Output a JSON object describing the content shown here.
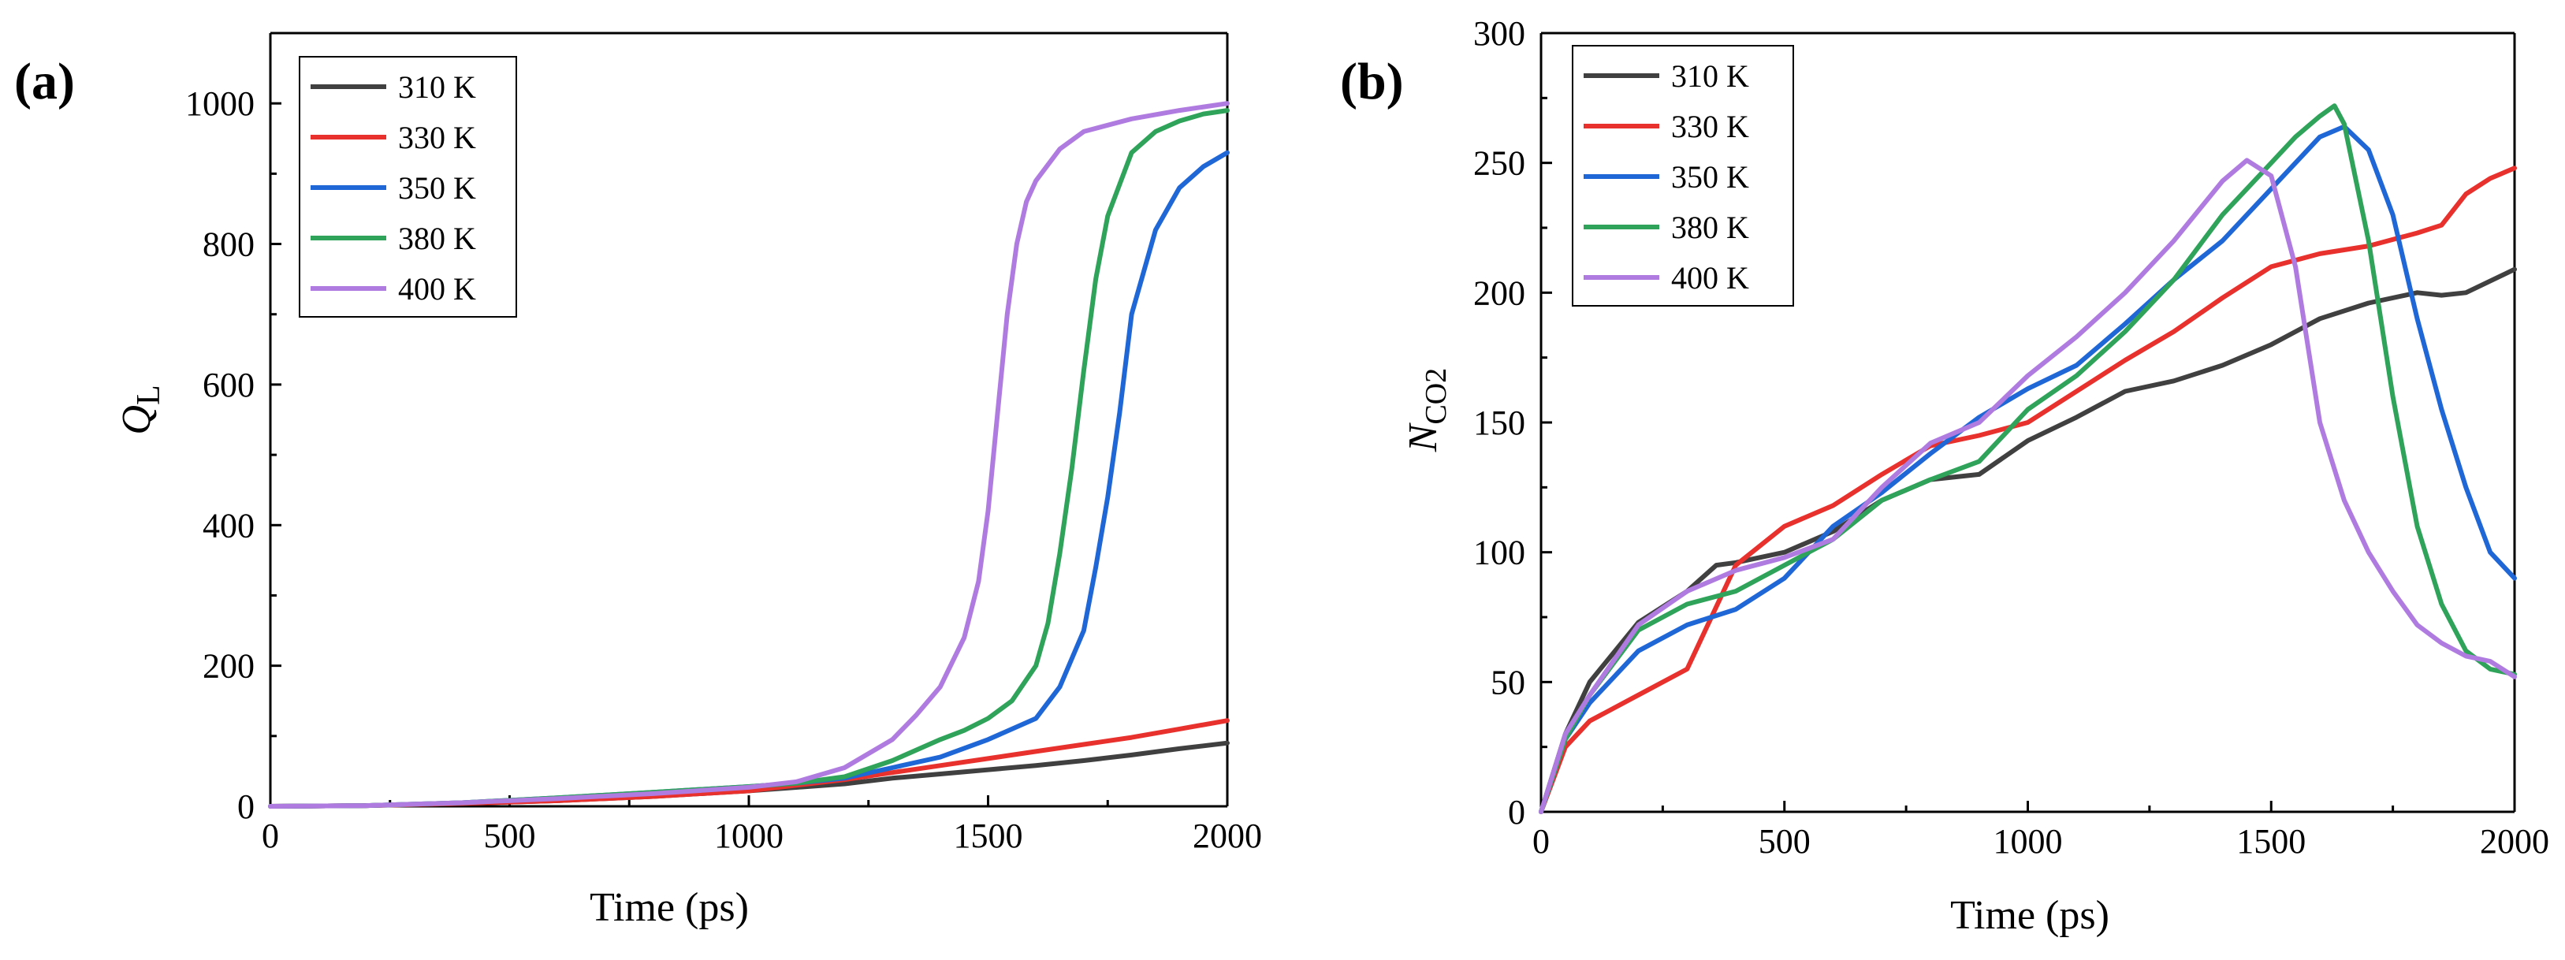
{
  "colors": {
    "310 K": "#404040",
    "330 K": "#e8302d",
    "350 K": "#1f66d6",
    "380 K": "#2fa35a",
    "400 K": "#b07be0"
  },
  "chart_data": [
    {
      "type": "line",
      "panel_label": "(a)",
      "xlabel": "Time (ps)",
      "ylabel_main": "Q",
      "ylabel_sub": "L",
      "xlim": [
        0,
        2000
      ],
      "ylim": [
        0,
        1100
      ],
      "xticks": [
        0,
        500,
        1000,
        1500,
        2000
      ],
      "yticks": [
        0,
        200,
        400,
        600,
        800,
        1000
      ],
      "xtick_labels": [
        "0",
        "500",
        "1000",
        "1500",
        "2000"
      ],
      "ytick_labels": [
        "0",
        "200",
        "400",
        "600",
        "800",
        "1000"
      ],
      "legend": [
        "310 K",
        "330 K",
        "350 K",
        "380 K",
        "400 K"
      ],
      "legend_position": "top-left",
      "series": [
        {
          "name": "310 K",
          "x": [
            0,
            200,
            400,
            600,
            800,
            1000,
            1200,
            1300,
            1400,
            1500,
            1600,
            1700,
            1800,
            1900,
            2000
          ],
          "y": [
            0,
            1,
            4,
            8,
            14,
            22,
            32,
            40,
            46,
            52,
            58,
            65,
            73,
            82,
            90
          ]
        },
        {
          "name": "330 K",
          "x": [
            0,
            200,
            400,
            600,
            800,
            1000,
            1200,
            1300,
            1400,
            1500,
            1600,
            1700,
            1800,
            1900,
            2000
          ],
          "y": [
            0,
            1,
            4,
            8,
            14,
            22,
            38,
            48,
            58,
            68,
            78,
            88,
            98,
            110,
            122
          ]
        },
        {
          "name": "350 K",
          "x": [
            0,
            200,
            400,
            600,
            800,
            1000,
            1100,
            1200,
            1300,
            1400,
            1500,
            1600,
            1650,
            1700,
            1725,
            1750,
            1775,
            1800,
            1850,
            1900,
            1950,
            2000
          ],
          "y": [
            0,
            1,
            5,
            12,
            20,
            28,
            33,
            40,
            55,
            70,
            95,
            125,
            170,
            250,
            340,
            440,
            560,
            700,
            820,
            880,
            910,
            930
          ]
        },
        {
          "name": "380 K",
          "x": [
            0,
            200,
            400,
            600,
            800,
            1000,
            1100,
            1200,
            1300,
            1400,
            1450,
            1500,
            1550,
            1600,
            1625,
            1650,
            1675,
            1700,
            1725,
            1750,
            1800,
            1850,
            1900,
            1950,
            2000
          ],
          "y": [
            0,
            1,
            5,
            12,
            20,
            28,
            33,
            42,
            65,
            95,
            108,
            125,
            150,
            200,
            260,
            360,
            480,
            620,
            750,
            840,
            930,
            960,
            975,
            985,
            990
          ]
        },
        {
          "name": "400 K",
          "x": [
            0,
            200,
            400,
            600,
            800,
            1000,
            1100,
            1200,
            1300,
            1350,
            1400,
            1450,
            1480,
            1500,
            1520,
            1540,
            1560,
            1580,
            1600,
            1650,
            1700,
            1800,
            1900,
            2000
          ],
          "y": [
            0,
            1,
            5,
            11,
            18,
            27,
            35,
            55,
            95,
            130,
            170,
            240,
            320,
            420,
            560,
            700,
            800,
            860,
            890,
            935,
            960,
            978,
            990,
            1000
          ]
        }
      ]
    },
    {
      "type": "line",
      "panel_label": "(b)",
      "xlabel": "Time (ps)",
      "ylabel_main": "N",
      "ylabel_sub": "CO2",
      "xlim": [
        0,
        2000
      ],
      "ylim": [
        0,
        300
      ],
      "xticks": [
        0,
        500,
        1000,
        1500,
        2000
      ],
      "yticks": [
        0,
        50,
        100,
        150,
        200,
        250,
        300
      ],
      "xtick_labels": [
        "0",
        "500",
        "1000",
        "1500",
        "2000"
      ],
      "ytick_labels": [
        "0",
        "50",
        "100",
        "150",
        "200",
        "250",
        "300"
      ],
      "legend": [
        "310 K",
        "330 K",
        "350 K",
        "380 K",
        "400 K"
      ],
      "legend_position": "top-left",
      "series": [
        {
          "name": "310 K",
          "x": [
            0,
            50,
            100,
            200,
            300,
            360,
            400,
            500,
            600,
            700,
            800,
            900,
            1000,
            1100,
            1200,
            1300,
            1400,
            1500,
            1600,
            1700,
            1800,
            1850,
            1900,
            2000
          ],
          "y": [
            0,
            30,
            50,
            73,
            85,
            95,
            96,
            100,
            108,
            120,
            128,
            130,
            143,
            152,
            162,
            166,
            172,
            180,
            190,
            196,
            200,
            199,
            200,
            209
          ]
        },
        {
          "name": "330 K",
          "x": [
            0,
            50,
            100,
            200,
            300,
            400,
            500,
            600,
            700,
            800,
            900,
            1000,
            1100,
            1200,
            1300,
            1400,
            1500,
            1600,
            1700,
            1800,
            1850,
            1900,
            1950,
            2000
          ],
          "y": [
            0,
            25,
            35,
            45,
            55,
            95,
            110,
            118,
            130,
            141,
            145,
            150,
            162,
            174,
            185,
            198,
            210,
            215,
            218,
            223,
            226,
            238,
            244,
            248
          ]
        },
        {
          "name": "350 K",
          "x": [
            0,
            50,
            100,
            200,
            300,
            400,
            500,
            600,
            700,
            800,
            900,
            1000,
            1100,
            1200,
            1300,
            1400,
            1500,
            1550,
            1600,
            1650,
            1700,
            1750,
            1800,
            1850,
            1900,
            1950,
            2000
          ],
          "y": [
            0,
            28,
            42,
            62,
            72,
            78,
            90,
            110,
            123,
            138,
            152,
            163,
            172,
            188,
            205,
            220,
            240,
            250,
            260,
            264,
            255,
            230,
            190,
            155,
            125,
            100,
            90
          ]
        },
        {
          "name": "380 K",
          "x": [
            0,
            50,
            100,
            200,
            300,
            400,
            500,
            600,
            700,
            800,
            900,
            1000,
            1100,
            1200,
            1300,
            1400,
            1500,
            1550,
            1600,
            1630,
            1650,
            1700,
            1750,
            1800,
            1850,
            1900,
            1950,
            2000
          ],
          "y": [
            0,
            28,
            45,
            70,
            80,
            85,
            95,
            105,
            120,
            128,
            135,
            155,
            168,
            185,
            205,
            230,
            250,
            260,
            268,
            272,
            265,
            220,
            160,
            110,
            80,
            62,
            55,
            53
          ]
        },
        {
          "name": "400 K",
          "x": [
            0,
            50,
            100,
            200,
            300,
            400,
            500,
            600,
            700,
            800,
            900,
            1000,
            1100,
            1200,
            1300,
            1400,
            1450,
            1500,
            1550,
            1600,
            1650,
            1700,
            1750,
            1800,
            1850,
            1900,
            1950,
            2000
          ],
          "y": [
            0,
            30,
            45,
            72,
            85,
            93,
            98,
            105,
            125,
            142,
            150,
            168,
            183,
            200,
            220,
            243,
            251,
            245,
            210,
            150,
            120,
            100,
            85,
            72,
            65,
            60,
            58,
            52
          ]
        }
      ]
    }
  ]
}
